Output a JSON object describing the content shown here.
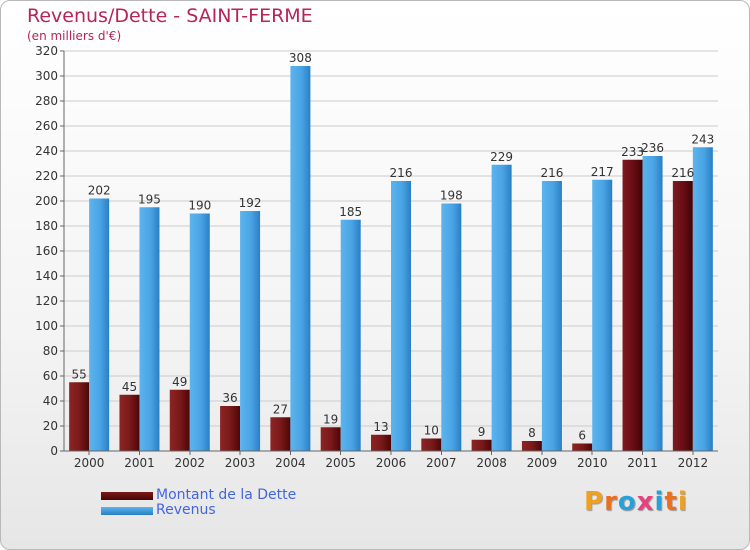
{
  "header": {
    "title": "Revenus/Dette - SAINT-FERME",
    "subtitle": "(en milliers d'€)"
  },
  "legend": [
    {
      "label": "Montant de la Dette",
      "color": "#5a0a0a"
    },
    {
      "label": "Revenus",
      "color": "#3d9ee0"
    }
  ],
  "logo": {
    "text": "Proxiti"
  },
  "colors": {
    "dette": "#7a1818",
    "revenus": "#4ca6e6",
    "label": "#333333",
    "grid": "#cccccc"
  },
  "chart_data": {
    "type": "bar",
    "title": "Revenus/Dette - SAINT-FERME",
    "subtitle": "(en milliers d'€)",
    "xlabel": "",
    "ylabel": "",
    "ylim": [
      0,
      320
    ],
    "yticks": [
      0,
      20,
      40,
      60,
      80,
      100,
      120,
      140,
      160,
      180,
      200,
      220,
      240,
      260,
      280,
      300,
      320
    ],
    "grid": true,
    "categories": [
      "2000",
      "2001",
      "2002",
      "2003",
      "2004",
      "2005",
      "2006",
      "2007",
      "2008",
      "2009",
      "2010",
      "2011",
      "2012"
    ],
    "series": [
      {
        "name": "Montant de la Dette",
        "values": [
          55,
          45,
          49,
          36,
          27,
          19,
          13,
          10,
          9,
          8,
          6,
          233,
          216
        ]
      },
      {
        "name": "Revenus",
        "values": [
          202,
          195,
          190,
          192,
          308,
          185,
          216,
          198,
          229,
          216,
          217,
          236,
          243
        ]
      }
    ],
    "legend_position": "bottom-left"
  }
}
